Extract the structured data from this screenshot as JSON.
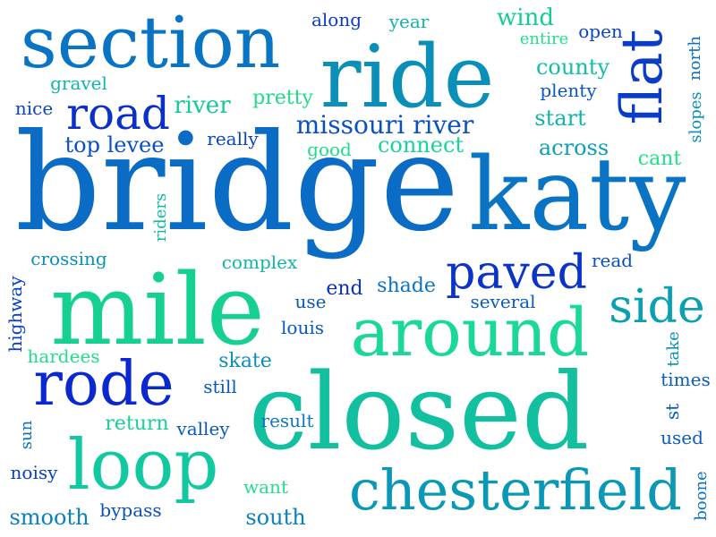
{
  "palette": {
    "blue_dark": "#0a1fd0",
    "blue": "#0a5fc0",
    "blue_mid": "#0a78c8",
    "teal": "#0aa0b4",
    "teal_green": "#10c89a",
    "green": "#1ee08a"
  },
  "words": [
    {
      "text": "bridge"
    },
    {
      "text": "closed"
    },
    {
      "text": "katy"
    },
    {
      "text": "mile"
    },
    {
      "text": "section"
    },
    {
      "text": "ride"
    },
    {
      "text": "around"
    },
    {
      "text": "chesterfield"
    },
    {
      "text": "loop"
    },
    {
      "text": "rode"
    },
    {
      "text": "flat"
    },
    {
      "text": "road"
    },
    {
      "text": "paved"
    },
    {
      "text": "side"
    },
    {
      "text": "missouri river"
    },
    {
      "text": "top levee"
    },
    {
      "text": "river"
    },
    {
      "text": "county"
    },
    {
      "text": "start"
    },
    {
      "text": "across"
    },
    {
      "text": "connect"
    },
    {
      "text": "wind"
    },
    {
      "text": "open"
    },
    {
      "text": "entire"
    },
    {
      "text": "year"
    },
    {
      "text": "along"
    },
    {
      "text": "gravel"
    },
    {
      "text": "nice"
    },
    {
      "text": "pretty"
    },
    {
      "text": "plenty"
    },
    {
      "text": "good"
    },
    {
      "text": "really"
    },
    {
      "text": "cant"
    },
    {
      "text": "north"
    },
    {
      "text": "slopes"
    },
    {
      "text": "riders"
    },
    {
      "text": "crossing"
    },
    {
      "text": "complex"
    },
    {
      "text": "read"
    },
    {
      "text": "shade"
    },
    {
      "text": "end"
    },
    {
      "text": "use"
    },
    {
      "text": "several"
    },
    {
      "text": "louis"
    },
    {
      "text": "highway"
    },
    {
      "text": "hardees"
    },
    {
      "text": "skate"
    },
    {
      "text": "take"
    },
    {
      "text": "still"
    },
    {
      "text": "times"
    },
    {
      "text": "return"
    },
    {
      "text": "valley"
    },
    {
      "text": "result"
    },
    {
      "text": "st"
    },
    {
      "text": "used"
    },
    {
      "text": "sun"
    },
    {
      "text": "noisy"
    },
    {
      "text": "want"
    },
    {
      "text": "boone"
    },
    {
      "text": "smooth"
    },
    {
      "text": "bypass"
    },
    {
      "text": "south"
    }
  ]
}
